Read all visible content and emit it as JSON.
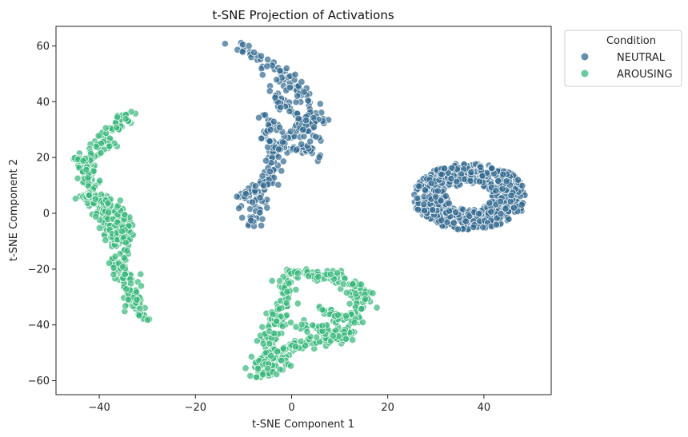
{
  "chart_data": {
    "type": "scatter",
    "title": "t-SNE Projection of Activations",
    "xlabel": "t-SNE Component 1",
    "ylabel": "t-SNE Component 2",
    "xlim": [
      -49,
      54
    ],
    "ylim": [
      -65,
      67
    ],
    "xticks": [
      -40,
      -20,
      0,
      20,
      40
    ],
    "yticks": [
      -60,
      -40,
      -20,
      0,
      20,
      40,
      60
    ],
    "grid": false,
    "legend": {
      "title": "Condition",
      "placement": "outside-top-right"
    },
    "series": [
      {
        "name": "NEUTRAL",
        "color": "#31688e",
        "alpha": 0.7,
        "point_count": 1000,
        "path_clusters": [
          {
            "path": [
              [
                -11.5,
                61
              ],
              [
                -9,
                58
              ],
              [
                -6,
                55
              ],
              [
                -3,
                51
              ],
              [
                0,
                47
              ],
              [
                2,
                43
              ],
              [
                3,
                40
              ],
              [
                5,
                37
              ],
              [
                6,
                33
              ],
              [
                3,
                31
              ],
              [
                0,
                28
              ],
              [
                -2,
                25
              ],
              [
                -4,
                21
              ],
              [
                -3,
                17
              ],
              [
                -5,
                13
              ],
              [
                -6,
                9
              ],
              [
                -7,
                6
              ],
              [
                -8,
                3
              ],
              [
                -8,
                0
              ],
              [
                -8,
                -4
              ]
            ],
            "spread": 1.2
          },
          {
            "path": [
              [
                -6,
                35
              ],
              [
                -4,
                31
              ],
              [
                -5,
                27
              ],
              [
                -3,
                24
              ],
              [
                -1,
                22
              ],
              [
                2,
                24
              ],
              [
                4,
                22
              ],
              [
                5,
                20
              ]
            ],
            "spread": 0.9
          },
          {
            "path": [
              [
                -4,
                44
              ],
              [
                -2,
                40
              ],
              [
                -1,
                37
              ],
              [
                1,
                35
              ],
              [
                2,
                31
              ],
              [
                4,
                29
              ],
              [
                5,
                26
              ]
            ],
            "spread": 0.9
          },
          {
            "path": [
              [
                -12,
                6
              ],
              [
                -10,
                6
              ],
              [
                -8,
                7
              ],
              [
                -6,
                10
              ],
              [
                -5,
                12
              ]
            ],
            "spread": 0.7
          }
        ],
        "region_clusters": [
          {
            "cx": 37,
            "cy": 6,
            "rx": 12,
            "ry": 12
          }
        ]
      },
      {
        "name": "AROUSING",
        "color": "#35b779",
        "alpha": 0.7,
        "point_count": 1000,
        "path_clusters": [
          {
            "path": [
              [
                -34.5,
                35
              ],
              [
                -36,
                32
              ],
              [
                -38,
                28
              ],
              [
                -40,
                24
              ],
              [
                -41.5,
                20
              ],
              [
                -42.5,
                16
              ],
              [
                -42,
                12
              ],
              [
                -41,
                8
              ],
              [
                -40,
                5
              ],
              [
                -39.5,
                0
              ],
              [
                -38,
                -4
              ],
              [
                -37,
                -8
              ],
              [
                -35.5,
                -12
              ],
              [
                -36,
                -17
              ],
              [
                -35,
                -21
              ],
              [
                -34,
                -25
              ],
              [
                -33,
                -29
              ],
              [
                -32,
                -33
              ],
              [
                -31,
                -37
              ]
            ],
            "spread": 1.2
          },
          {
            "path": [
              [
                -45,
                19.5
              ],
              [
                -43,
                19
              ]
            ],
            "spread": 0.4
          },
          {
            "path": [
              [
                -43.5,
                7
              ],
              [
                -41,
                5
              ],
              [
                -38,
                3
              ],
              [
                -36,
                0
              ],
              [
                -35,
                -3
              ],
              [
                -34.5,
                -7
              ],
              [
                -35,
                -11
              ]
            ],
            "spread": 0.9
          },
          {
            "path": [
              [
                -2,
                -21
              ],
              [
                1,
                -22
              ],
              [
                4,
                -22
              ],
              [
                7,
                -22
              ],
              [
                10,
                -23
              ],
              [
                13,
                -26
              ],
              [
                15,
                -30
              ],
              [
                14,
                -34
              ],
              [
                13,
                -38
              ],
              [
                12,
                -42
              ],
              [
                10,
                -45
              ],
              [
                7,
                -45
              ],
              [
                4,
                -46
              ],
              [
                2,
                -47
              ],
              [
                -2,
                -49
              ],
              [
                -5,
                -52
              ],
              [
                -7,
                -56
              ]
            ],
            "spread": 1.0
          },
          {
            "path": [
              [
                -2,
                -24
              ],
              [
                -1,
                -28
              ],
              [
                -1,
                -31
              ],
              [
                -2,
                -35
              ],
              [
                -3,
                -38
              ],
              [
                -4,
                -41
              ],
              [
                -4.5,
                -44
              ],
              [
                -5,
                -47
              ]
            ],
            "spread": 1.0
          },
          {
            "path": [
              [
                6,
                -35
              ],
              [
                9,
                -36
              ],
              [
                11,
                -38
              ],
              [
                13,
                -37
              ]
            ],
            "spread": 1.0
          },
          {
            "path": [
              [
                2,
                -40
              ],
              [
                5,
                -41
              ],
              [
                8,
                -42
              ],
              [
                11,
                -44
              ]
            ],
            "spread": 1.0
          },
          {
            "path": [
              [
                -8,
                -53
              ],
              [
                -6,
                -55
              ],
              [
                -4,
                -51
              ],
              [
                -2,
                -53
              ],
              [
                -7,
                -58
              ]
            ],
            "spread": 1.2
          }
        ],
        "region_clusters": []
      }
    ]
  }
}
